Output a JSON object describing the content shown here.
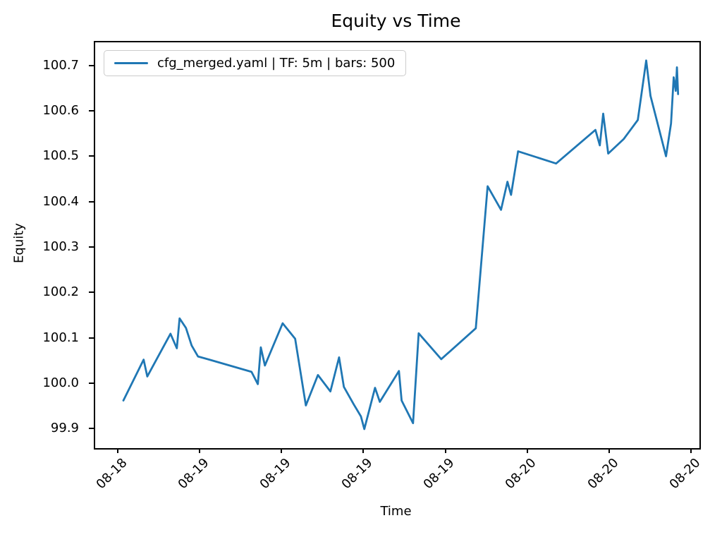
{
  "figure": {
    "background": "#ffffff",
    "text_color": "#000000",
    "axis_color": "#000000"
  },
  "chart_data": {
    "type": "line",
    "title": "Equity vs Time",
    "xlabel": "Time",
    "ylabel": "Equity",
    "grid": false,
    "legend": {
      "position": "upper-left",
      "entries": [
        {
          "label": "cfg_merged.yaml | TF: 5m | bars: 500",
          "color": "#1f77b4"
        }
      ]
    },
    "y_ticks": [
      "99.9",
      "100.0",
      "100.1",
      "100.2",
      "100.3",
      "100.4",
      "100.5",
      "100.6",
      "100.7"
    ],
    "x_ticks": [
      {
        "label": "08-18",
        "time": "08-18 18:00"
      },
      {
        "label": "08-19",
        "time": "08-19 00:00"
      },
      {
        "label": "08-19",
        "time": "08-19 06:00"
      },
      {
        "label": "08-19",
        "time": "08-19 12:00"
      },
      {
        "label": "08-19",
        "time": "08-19 18:00"
      },
      {
        "label": "08-20",
        "time": "08-20 00:00"
      },
      {
        "label": "08-20",
        "time": "08-20 06:00"
      },
      {
        "label": "08-20",
        "time": "08-20 12:00"
      }
    ],
    "y_range": [
      99.86,
      100.754
    ],
    "x_range": [
      "08-18 16:15",
      "08-20 12:31"
    ],
    "series": [
      {
        "name": "cfg_merged.yaml | TF: 5m | bars: 500",
        "color": "#1f77b4",
        "line_width": 2.8,
        "points": [
          {
            "t": "08-18 18:19",
            "v": 99.965
          },
          {
            "t": "08-18 19:48",
            "v": 100.055
          },
          {
            "t": "08-18 20:04",
            "v": 100.018
          },
          {
            "t": "08-18 21:46",
            "v": 100.112
          },
          {
            "t": "08-18 22:14",
            "v": 100.08
          },
          {
            "t": "08-18 22:26",
            "v": 100.146
          },
          {
            "t": "08-18 22:54",
            "v": 100.125
          },
          {
            "t": "08-18 23:19",
            "v": 100.086
          },
          {
            "t": "08-18 23:47",
            "v": 100.062
          },
          {
            "t": "08-19 00:37",
            "v": 100.055
          },
          {
            "t": "08-19 03:42",
            "v": 100.028
          },
          {
            "t": "08-19 04:10",
            "v": 100.001
          },
          {
            "t": "08-19 04:23",
            "v": 100.082
          },
          {
            "t": "08-19 04:41",
            "v": 100.042
          },
          {
            "t": "08-19 05:59",
            "v": 100.135
          },
          {
            "t": "08-19 06:54",
            "v": 100.101
          },
          {
            "t": "08-19 07:41",
            "v": 99.954
          },
          {
            "t": "08-19 08:34",
            "v": 100.021
          },
          {
            "t": "08-19 09:29",
            "v": 99.985
          },
          {
            "t": "08-19 10:07",
            "v": 100.06
          },
          {
            "t": "08-19 10:28",
            "v": 99.995
          },
          {
            "t": "08-19 11:12",
            "v": 99.956
          },
          {
            "t": "08-19 11:43",
            "v": 99.93
          },
          {
            "t": "08-19 11:58",
            "v": 99.902
          },
          {
            "t": "08-19 12:45",
            "v": 99.993
          },
          {
            "t": "08-19 13:06",
            "v": 99.962
          },
          {
            "t": "08-19 14:30",
            "v": 100.03
          },
          {
            "t": "08-19 14:42",
            "v": 99.965
          },
          {
            "t": "08-19 15:32",
            "v": 99.915
          },
          {
            "t": "08-19 15:57",
            "v": 100.113
          },
          {
            "t": "08-19 17:36",
            "v": 100.056
          },
          {
            "t": "08-19 20:08",
            "v": 100.124
          },
          {
            "t": "08-19 21:00",
            "v": 100.437
          },
          {
            "t": "08-19 21:59",
            "v": 100.385
          },
          {
            "t": "08-19 22:27",
            "v": 100.447
          },
          {
            "t": "08-19 22:43",
            "v": 100.418
          },
          {
            "t": "08-19 23:14",
            "v": 100.514
          },
          {
            "t": "08-20 02:01",
            "v": 100.487
          },
          {
            "t": "08-20 04:54",
            "v": 100.561
          },
          {
            "t": "08-20 05:13",
            "v": 100.527
          },
          {
            "t": "08-20 05:28",
            "v": 100.597
          },
          {
            "t": "08-20 05:50",
            "v": 100.509
          },
          {
            "t": "08-20 06:58",
            "v": 100.541
          },
          {
            "t": "08-20 08:00",
            "v": 100.583
          },
          {
            "t": "08-20 08:37",
            "v": 100.714
          },
          {
            "t": "08-20 08:56",
            "v": 100.636
          },
          {
            "t": "08-20 10:04",
            "v": 100.503
          },
          {
            "t": "08-20 10:26",
            "v": 100.575
          },
          {
            "t": "08-20 10:38",
            "v": 100.677
          },
          {
            "t": "08-20 10:47",
            "v": 100.647
          },
          {
            "t": "08-20 10:52",
            "v": 100.699
          },
          {
            "t": "08-20 10:57",
            "v": 100.64
          }
        ]
      }
    ]
  }
}
